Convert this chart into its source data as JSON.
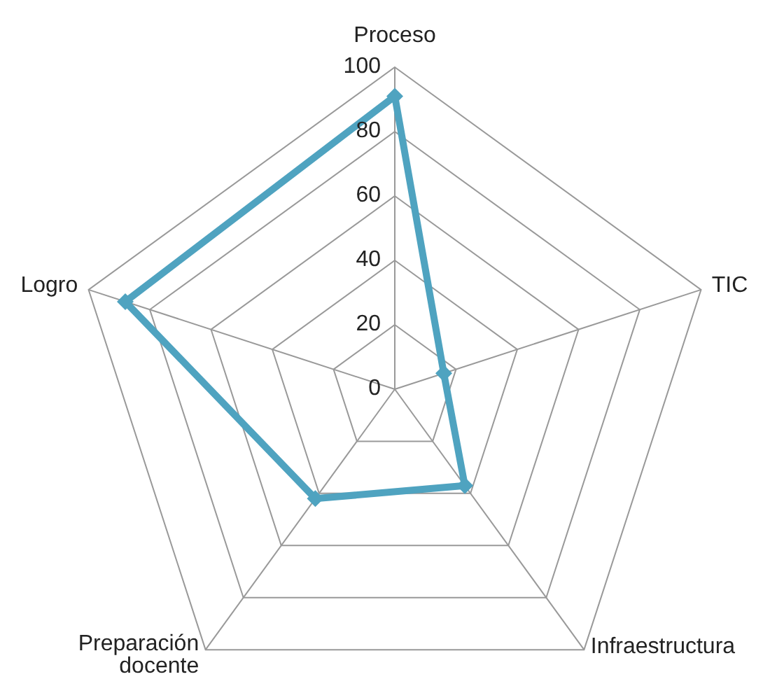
{
  "chart_data": {
    "type": "radar",
    "categories": [
      "Proceso",
      "TIC",
      "Infraestructura",
      "Preparación docente",
      "Logro"
    ],
    "series": [
      {
        "color": "#4fa3c0",
        "values": [
          91,
          16,
          37,
          42,
          88
        ]
      }
    ],
    "ylim": [
      0,
      100
    ],
    "yticks": [
      0,
      20,
      40,
      60,
      80,
      100
    ],
    "grid": true,
    "marker": "diamond",
    "legend": false
  }
}
